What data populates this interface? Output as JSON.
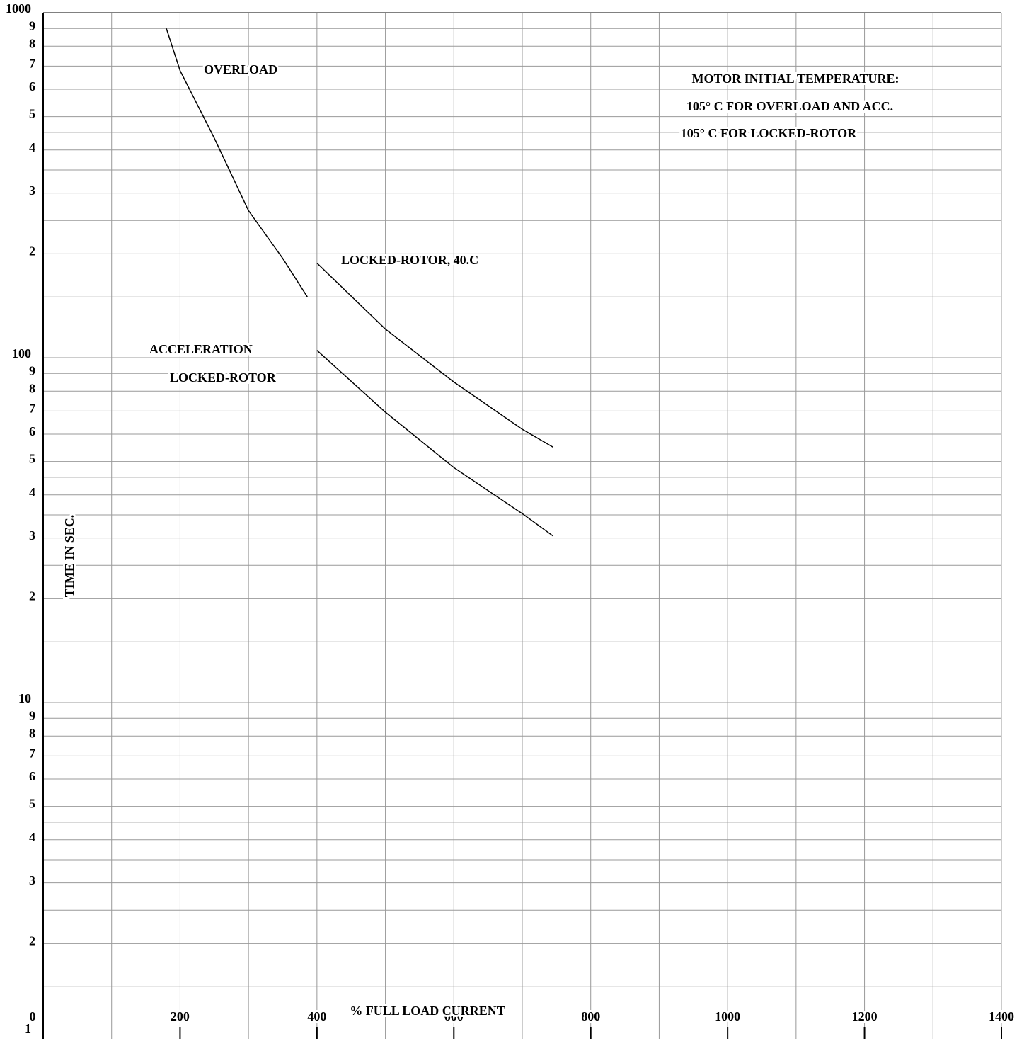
{
  "chart_data": {
    "type": "line",
    "x_label": "% FULL LOAD CURRENT",
    "y_label": "TIME IN SEC.",
    "log_y": true,
    "grid": true,
    "xlim": [
      0,
      1400
    ],
    "xticks": [
      0,
      200,
      400,
      600,
      800,
      1000,
      1200,
      1400
    ],
    "xminorticks": [
      100,
      300,
      500,
      700,
      900,
      1100,
      1300
    ],
    "ylim": [
      1,
      1000
    ],
    "yticks": [
      1,
      {
        "value": 2,
        "label": "2"
      },
      {
        "value": 3,
        "label": "3"
      },
      {
        "value": 4,
        "label": "4"
      },
      {
        "value": 5,
        "label": "5"
      },
      {
        "value": 6,
        "label": "6"
      },
      {
        "value": 7,
        "label": "7"
      },
      {
        "value": 8,
        "label": "8"
      },
      {
        "value": 9,
        "label": "9"
      },
      10,
      {
        "value": 20,
        "label": "2"
      },
      {
        "value": 30,
        "label": "3"
      },
      {
        "value": 40,
        "label": "4"
      },
      {
        "value": 50,
        "label": "5"
      },
      {
        "value": 60,
        "label": "6"
      },
      {
        "value": 70,
        "label": "7"
      },
      {
        "value": 80,
        "label": "8"
      },
      {
        "value": 90,
        "label": "9"
      },
      100,
      {
        "value": 200,
        "label": "2"
      },
      {
        "value": 300,
        "label": "3"
      },
      {
        "value": 400,
        "label": "4"
      },
      {
        "value": 500,
        "label": "5"
      },
      {
        "value": 600,
        "label": "6"
      },
      {
        "value": 700,
        "label": "7"
      },
      {
        "value": 800,
        "label": "8"
      },
      {
        "value": 900,
        "label": "9"
      },
      1000
    ],
    "yminorticks": [
      1.5,
      2.5,
      3.5,
      4.5,
      15,
      25,
      35,
      45,
      150,
      250,
      350,
      450
    ],
    "series": [
      {
        "name": "OVERLOAD",
        "color": "#000000",
        "x": [
          180,
          200,
          250,
          300,
          350,
          386
        ],
        "values": [
          900,
          680,
          433,
          267,
          194,
          150
        ]
      },
      {
        "name": "LOCKED-ROTOR, 40.C",
        "color": "#000000",
        "x": [
          400,
          500,
          600,
          700,
          745
        ],
        "values": [
          188,
          121,
          85,
          62,
          55
        ]
      },
      {
        "name": "LOCKED-ROTOR",
        "color": "#000000",
        "x": [
          400,
          500,
          600,
          700,
          745
        ],
        "values": [
          105,
          69.5,
          48,
          35.3,
          30.4
        ]
      }
    ],
    "annotations": [
      "ACCELERATION",
      "MOTOR INITIAL TEMPERATURE:",
      "105° C FOR OVERLOAD AND ACC.",
      "105° C FOR LOCKED-ROTOR"
    ]
  }
}
